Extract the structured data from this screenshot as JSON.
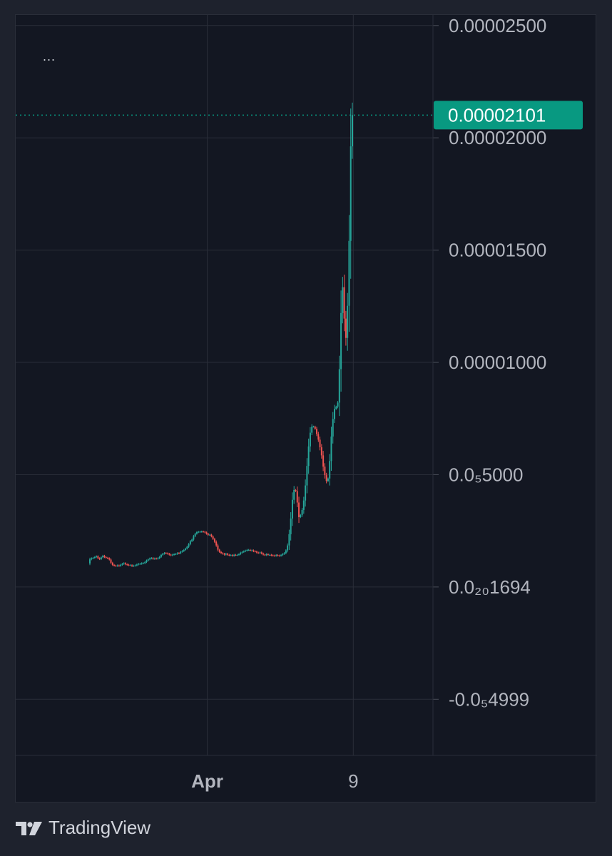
{
  "chart_data": {
    "type": "candlestick",
    "title": "",
    "xlabel": "",
    "ylabel": "",
    "ylim": [
      -7.5e-06,
      2.547e-05
    ],
    "grid": true,
    "y_ticks": [
      {
        "value": 2.5e-05,
        "label": "0.00002500"
      },
      {
        "value": 2e-05,
        "label": "0.00002000"
      },
      {
        "value": 1.5e-05,
        "label": "0.00001500"
      },
      {
        "value": 1e-05,
        "label": "0.00001000"
      },
      {
        "value": 5e-06,
        "label": "0.0₅5000"
      },
      {
        "value": 0.0,
        "label": "0.0₂₀1694"
      },
      {
        "value": -5e-06,
        "label": "-0.0₅4999"
      }
    ],
    "x_ticks": [
      {
        "position": 0.43,
        "label": "Apr",
        "bold": true
      },
      {
        "position": 0.78,
        "label": "9",
        "bold": false
      }
    ],
    "last_price": {
      "value": 2.101e-05,
      "label": "0.00002101"
    },
    "colors": {
      "up": "#26a69a",
      "down": "#ef5350",
      "price_tag": "#089981",
      "grid": "#2a2e39",
      "text": "#b2b5be",
      "background": "#131722"
    },
    "series": [
      {
        "values": [
          1.23e-06,
          1.28e-06,
          1.3e-06,
          1.33e-06,
          1.37e-06,
          1.28e-06,
          1.24e-06,
          1.32e-06,
          1.39e-06,
          1.33e-06,
          1.3e-06,
          1.28e-06,
          1.22e-06,
          1.08e-06,
          9.8e-07,
          9.5e-07,
          9.4e-07,
          9.6e-07,
          9.4e-07,
          9.9e-07,
          1.03e-06,
          1.06e-06,
          1.01e-06,
          9.9e-07,
          9.7e-07,
          9.7e-07,
          9.3e-07,
          9.5e-07,
          9.6e-07,
          1e-06,
          1.03e-06,
          1.03e-06,
          1.06e-06,
          1.06e-06,
          1.11e-06,
          1.18e-06,
          1.23e-06,
          1.27e-06,
          1.29e-06,
          1.25e-06,
          1.27e-06,
          1.26e-06,
          1.28e-06,
          1.34e-06,
          1.43e-06,
          1.48e-06,
          1.51e-06,
          1.5e-06,
          1.48e-06,
          1.44e-06,
          1.41e-06,
          1.44e-06,
          1.46e-06,
          1.47e-06,
          1.51e-06,
          1.5e-06,
          1.57e-06,
          1.6e-06,
          1.65e-06,
          1.71e-06,
          1.79e-06,
          1.91e-06,
          2.04e-06,
          2.11e-06,
          2.26e-06,
          2.37e-06,
          2.44e-06,
          2.46e-06,
          2.46e-06,
          2.47e-06,
          2.46e-06,
          2.43e-06,
          2.37e-06,
          2.32e-06,
          2.33e-06,
          2.25e-06,
          2.14e-06,
          2.01e-06,
          1.85e-06,
          1.66e-06,
          1.56e-06,
          1.51e-06,
          1.48e-06,
          1.44e-06,
          1.48e-06,
          1.43e-06,
          1.41e-06,
          1.42e-06,
          1.39e-06,
          1.43e-06,
          1.42e-06,
          1.43e-06,
          1.46e-06,
          1.53e-06,
          1.56e-06,
          1.59e-06,
          1.62e-06,
          1.65e-06,
          1.65e-06,
          1.63e-06,
          1.63e-06,
          1.59e-06,
          1.58e-06,
          1.53e-06,
          1.52e-06,
          1.54e-06,
          1.49e-06,
          1.44e-06,
          1.42e-06,
          1.46e-06,
          1.43e-06,
          1.43e-06,
          1.41e-06,
          1.4e-06,
          1.39e-06,
          1.42e-06,
          1.4e-06,
          1.39e-06,
          1.42e-06,
          1.47e-06,
          1.51e-06,
          1.63e-06,
          1.85e-06,
          2.35e-06,
          3.05e-06,
          3.88e-06,
          4.32e-06,
          4.27e-06,
          3.76e-06,
          3.11e-06,
          3.21e-06,
          3.43e-06,
          3.85e-06,
          4.52e-06,
          5.39e-06,
          6.26e-06,
          6.87e-06,
          7.14e-06,
          7.14e-06,
          7.04e-06,
          6.81e-06,
          6.56e-06,
          6.22e-06,
          5.86e-06,
          5.36e-06,
          4.98e-06,
          4.72e-06,
          4.83e-06,
          5.61e-06,
          6.7e-06,
          7.48e-06,
          7.93e-06,
          8.03e-06,
          8.21e-06,
          9.7e-06,
          1.22e-05,
          1.335e-05,
          1.195e-05,
          1.109e-05,
          1.252e-05,
          1.541e-05,
          1.962e-05,
          2.101e-05
        ]
      }
    ]
  },
  "branding": {
    "name": "TradingView"
  },
  "menu": {
    "dots": "..."
  }
}
